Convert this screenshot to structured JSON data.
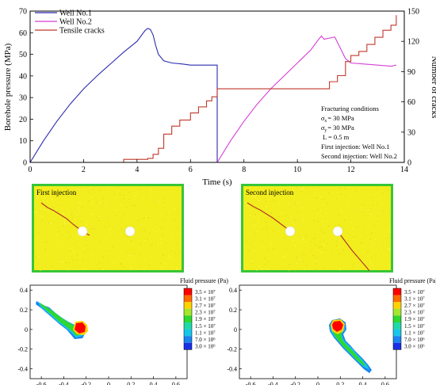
{
  "chart_data": [
    {
      "type": "line",
      "xlabel": "Time (s)",
      "ylabel": "Borehole pressure (MPa)",
      "y2label": "Number of cracks",
      "xlim": [
        0,
        14
      ],
      "ylim": [
        0,
        70
      ],
      "y2lim": [
        0,
        150
      ],
      "xticks": [
        "0",
        "2",
        "4",
        "6",
        "8",
        "10",
        "12",
        "14"
      ],
      "yticks": [
        "0",
        "10",
        "20",
        "30",
        "40",
        "50",
        "60",
        "70"
      ],
      "y2ticks": [
        "0",
        "30",
        "60",
        "90",
        "120",
        "150"
      ],
      "legend_position": "top-left",
      "series": [
        {
          "name": "Well No.1",
          "color": "#2b2bb0",
          "axis": "left",
          "x": [
            0,
            0.5,
            1,
            1.5,
            2,
            2.5,
            3,
            3.5,
            4,
            4.3,
            4.4,
            4.5,
            4.6,
            4.7,
            4.8,
            5.0,
            5.3,
            5.7,
            6.0,
            6.4,
            6.8,
            7.0,
            7.0
          ],
          "y": [
            0,
            10,
            19,
            27,
            34,
            40,
            45.5,
            51,
            56,
            61,
            62,
            61.5,
            59,
            54,
            50,
            47,
            46,
            45.5,
            45,
            45,
            45,
            45,
            0
          ]
        },
        {
          "name": "Well No.2",
          "color": "#d63fd6",
          "axis": "left",
          "x": [
            7.0,
            7.5,
            8,
            8.5,
            9,
            9.5,
            10,
            10.5,
            10.8,
            10.9,
            11.0,
            11.2,
            11.4,
            11.6,
            11.8,
            12.0,
            12.5,
            13,
            13.5,
            13.7
          ],
          "y": [
            0,
            10,
            19,
            27,
            34,
            40,
            46,
            52,
            57,
            58.5,
            57,
            57.5,
            58,
            53,
            48,
            46,
            45.5,
            45,
            44.5,
            45
          ]
        },
        {
          "name": "Tensile cracks",
          "color": "#c0392b",
          "axis": "right",
          "x": [
            0,
            3.4,
            3.5,
            4.4,
            4.6,
            4.8,
            5.0,
            5.3,
            5.6,
            6.0,
            6.3,
            6.6,
            6.8,
            7.0,
            7.5,
            8,
            9,
            10,
            10.9,
            11.2,
            11.5,
            11.8,
            12.0,
            12.3,
            12.6,
            12.9,
            13.2,
            13.5,
            13.7
          ],
          "y": [
            0,
            0,
            3,
            4,
            8,
            14,
            28,
            36,
            42,
            49,
            55,
            61,
            65,
            73,
            73,
            73,
            73,
            73,
            73,
            80,
            86,
            100,
            106,
            110,
            117,
            124,
            131,
            136,
            146
          ]
        }
      ],
      "annotation": {
        "title": "Fracturing conditions",
        "sigma_x": "= 30 MPa",
        "sigma_y": "= 30 MPa",
        "length": "L = 0.5 m",
        "first": "First injection: Well No.1",
        "second": "Second injection: Well No.2"
      }
    },
    {
      "type": "heatmap",
      "panel_label": "First injection",
      "fill_color": "#f2ed1c",
      "border_color": "#37c637"
    },
    {
      "type": "heatmap",
      "panel_label": "Second injection",
      "fill_color": "#f2ed1c",
      "border_color": "#37c637"
    },
    {
      "type": "heatmap",
      "colorbar_title": "Fluid pressure (Pa)",
      "colorbar_labels": [
        "3.5 × 10⁷",
        "3.1 × 10⁷",
        "2.7 × 10⁷",
        "2.3 × 10⁷",
        "1.9 × 10⁷",
        "1.5 × 10⁷",
        "1.1 × 10⁷",
        "7.0 × 10⁶",
        "3.0 × 10⁶"
      ],
      "colorbar_colors": [
        "#ff0000",
        "#ff6a00",
        "#ffd200",
        "#a6e62e",
        "#2ed82e",
        "#1fd8a8",
        "#18c6ea",
        "#1a84f0",
        "#1a2ee6"
      ],
      "xticks": [
        "-0.6",
        "-0.4",
        "-0.2",
        "0",
        "0.2",
        "0.4",
        "0.6"
      ],
      "yticks": [
        "0.4",
        "0.2",
        "0",
        "-0.2",
        "-0.4"
      ],
      "xlim": [
        -0.7,
        0.7
      ],
      "ylim": [
        -0.5,
        0.45
      ]
    },
    {
      "type": "heatmap",
      "colorbar_title": "Fluid pressure (Pa)",
      "colorbar_labels": [
        "3.5 × 10⁷",
        "3.1 × 10⁷",
        "2.7 × 10⁷",
        "2.3 × 10⁷",
        "1.9 × 10⁷",
        "1.5 × 10⁷",
        "1.1 × 10⁷",
        "7.0 × 10⁶",
        "3.0 × 10⁶"
      ],
      "colorbar_colors": [
        "#ff0000",
        "#ff6a00",
        "#ffd200",
        "#a6e62e",
        "#2ed82e",
        "#1fd8a8",
        "#18c6ea",
        "#1a84f0",
        "#1a2ee6"
      ],
      "xticks": [
        "-0.6",
        "-0.4",
        "-0.2",
        "0",
        "0.2",
        "0.4",
        "0.6"
      ],
      "yticks": [
        "0.4",
        "0.2",
        "0",
        "-0.2",
        "-0.4"
      ],
      "xlim": [
        -0.7,
        0.7
      ],
      "ylim": [
        -0.5,
        0.45
      ]
    }
  ]
}
